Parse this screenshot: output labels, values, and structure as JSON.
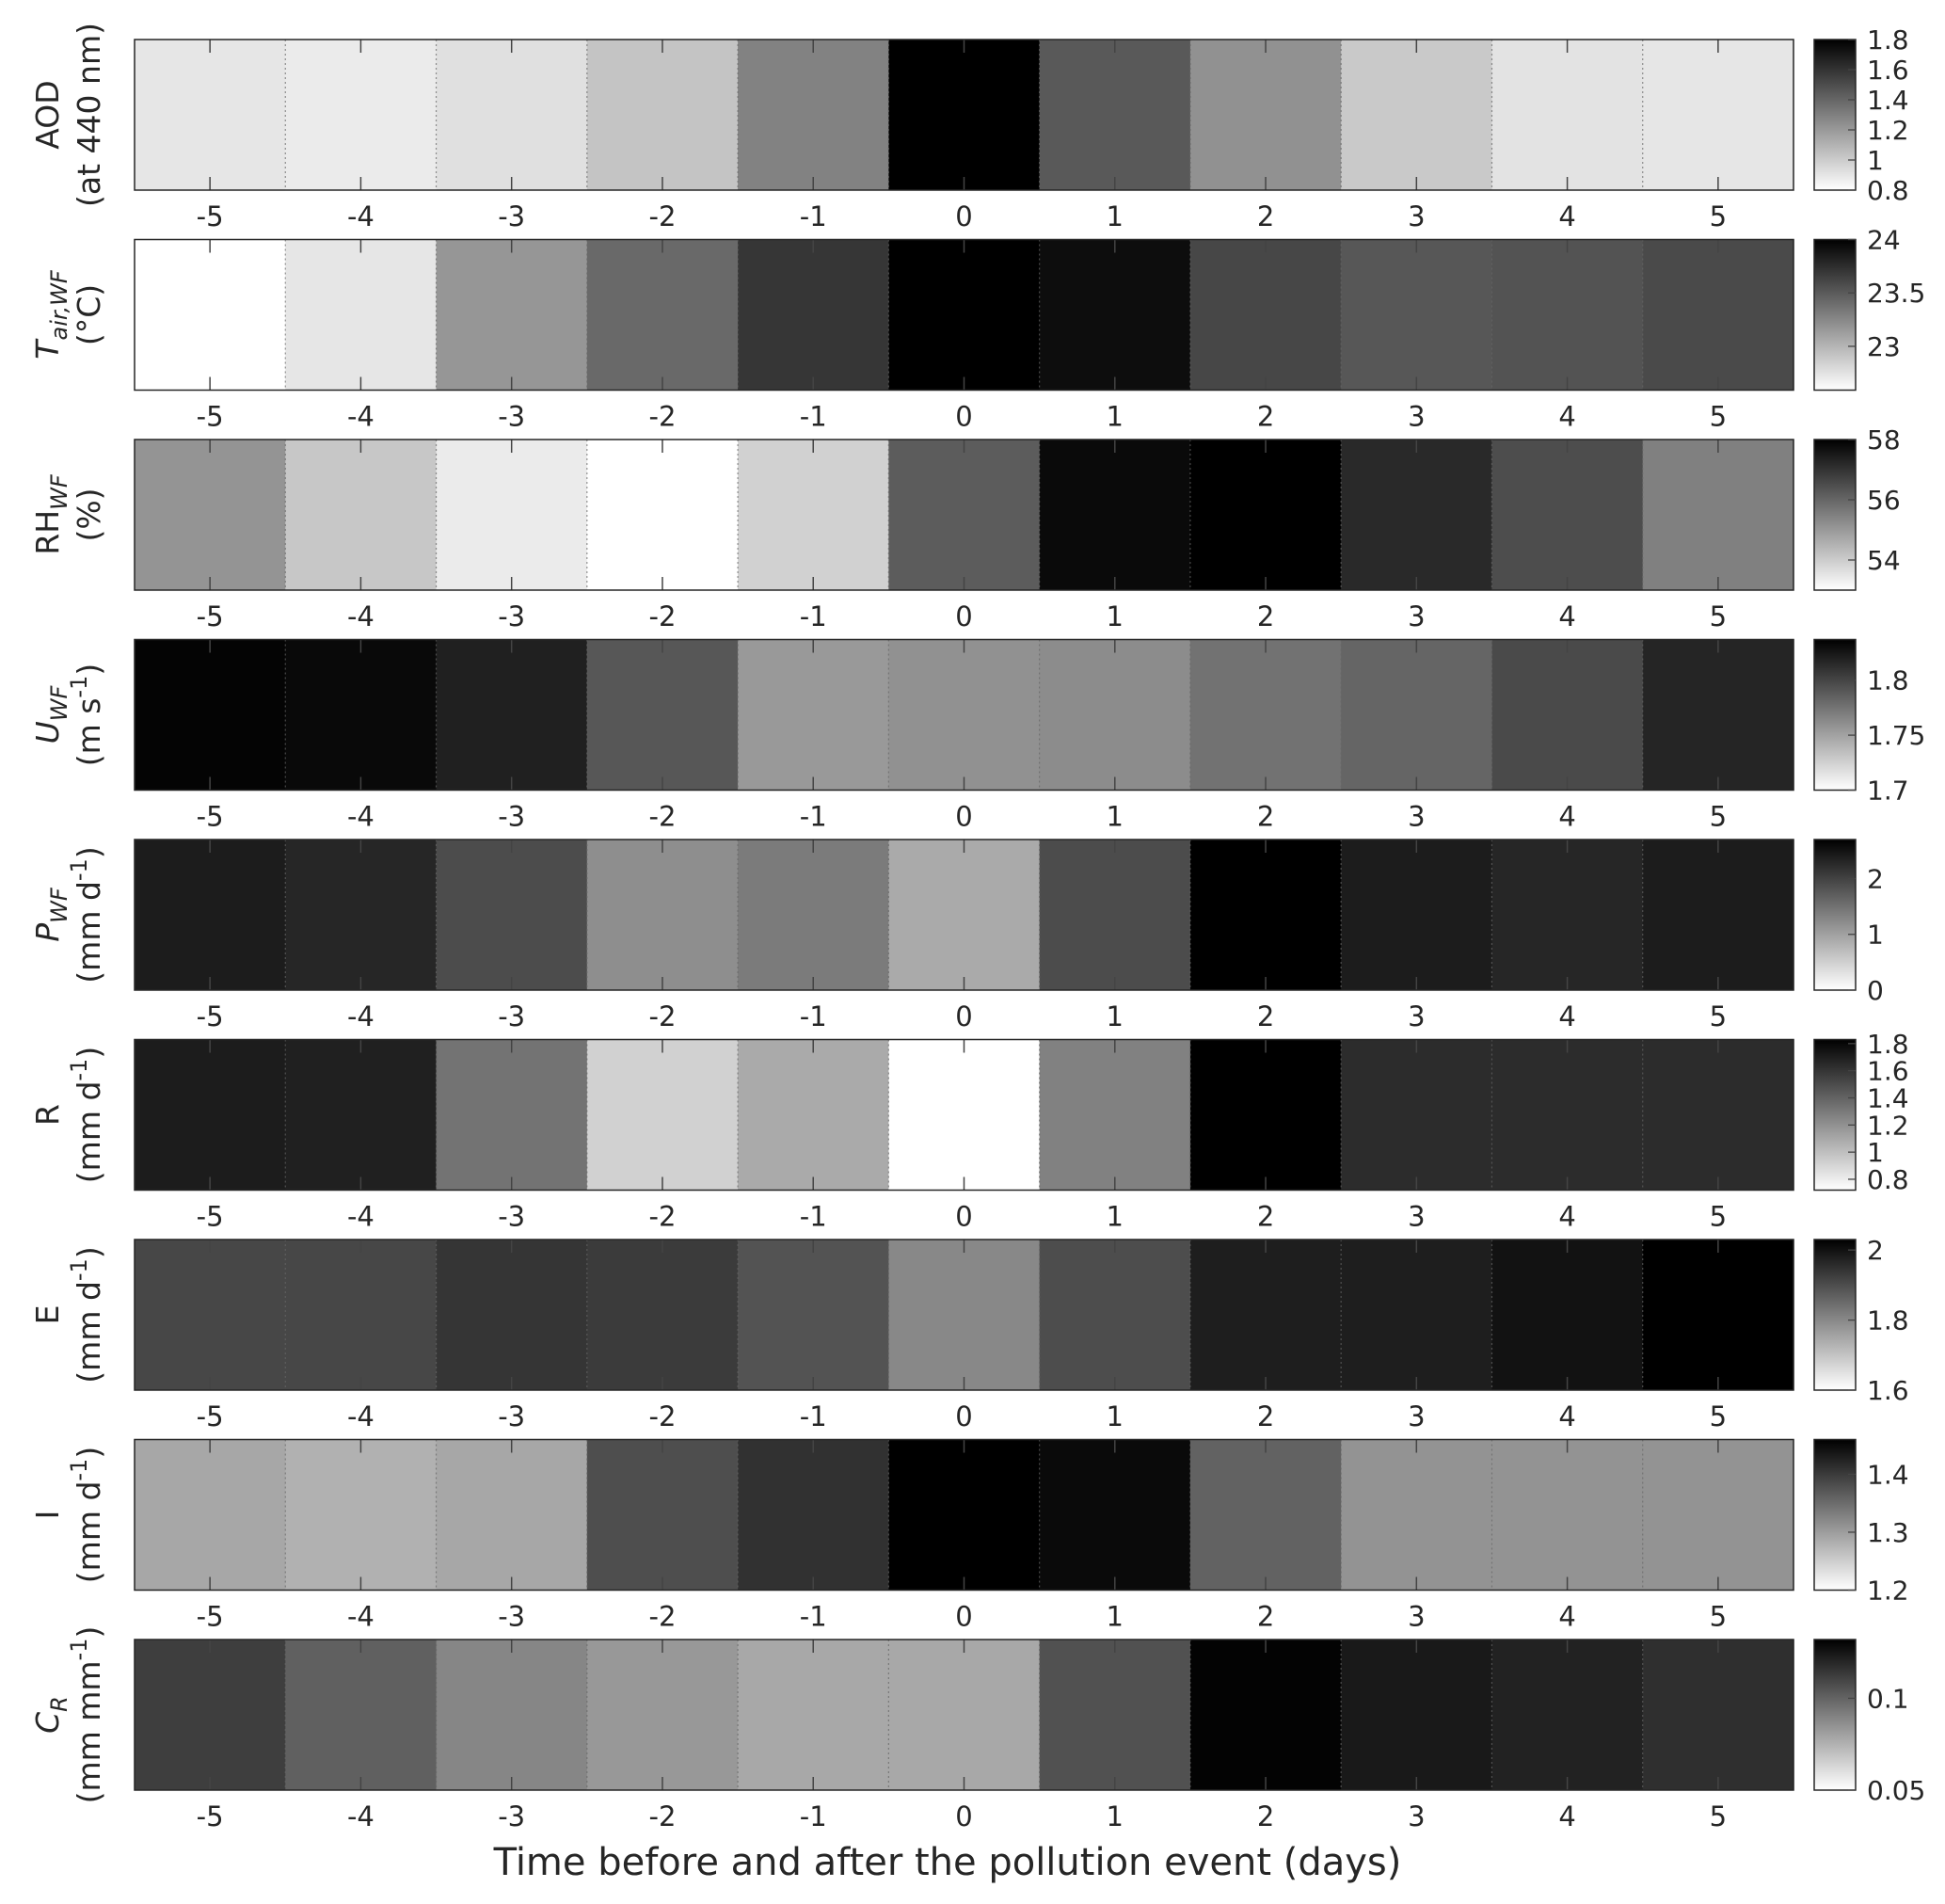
{
  "figure": {
    "xlabel": "Time before and after the pollution event (days)"
  },
  "chart_data": [
    {
      "type": "heatmap",
      "ylabel_lines": [
        "AOD",
        "(at 440 nm)"
      ],
      "x": [
        -5,
        -4,
        -3,
        -2,
        -1,
        0,
        1,
        2,
        3,
        4,
        5
      ],
      "values": [
        0.9,
        0.88,
        0.92,
        1.03,
        1.29,
        1.8,
        1.45,
        1.23,
        1.01,
        0.91,
        0.9
      ],
      "colorbar": {
        "min": 0.8,
        "max": 1.8,
        "ticks": [
          0.8,
          1,
          1.2,
          1.4,
          1.6,
          1.8
        ],
        "tick_labels": [
          "0.8",
          "1",
          "1.2",
          "1.4",
          "1.6",
          "1.8"
        ]
      },
      "colormap": "gray-reversed"
    },
    {
      "type": "heatmap",
      "ylabel_lines": [
        "T_air,WF",
        "(°C)"
      ],
      "x": [
        -5,
        -4,
        -3,
        -2,
        -1,
        0,
        1,
        2,
        3,
        4,
        5
      ],
      "values": [
        22.59,
        22.73,
        23.17,
        23.42,
        23.7,
        24.0,
        23.93,
        23.61,
        23.52,
        23.54,
        23.59
      ],
      "colorbar": {
        "min": 22.59,
        "max": 24.0,
        "ticks": [
          23,
          23.5,
          24
        ],
        "tick_labels": [
          "23",
          "23.5",
          "24"
        ]
      },
      "colormap": "gray-reversed"
    },
    {
      "type": "heatmap",
      "ylabel_lines": [
        "RH_WF",
        "(%)"
      ],
      "x": [
        -5,
        -4,
        -3,
        -2,
        -1,
        0,
        1,
        2,
        3,
        4,
        5
      ],
      "values": [
        55.1,
        54.1,
        53.4,
        53.0,
        53.9,
        56.2,
        57.8,
        58.0,
        57.2,
        56.5,
        55.5
      ],
      "colorbar": {
        "min": 53.0,
        "max": 58.0,
        "ticks": [
          54,
          56,
          58
        ],
        "tick_labels": [
          "54",
          "56",
          "58"
        ]
      },
      "colormap": "gray-reversed"
    },
    {
      "type": "heatmap",
      "ylabel_lines": [
        "U_WF",
        "(m s^-1)"
      ],
      "x": [
        -5,
        -4,
        -3,
        -2,
        -1,
        0,
        1,
        2,
        3,
        4,
        5
      ],
      "values": [
        1.835,
        1.832,
        1.82,
        1.79,
        1.755,
        1.759,
        1.762,
        1.776,
        1.783,
        1.797,
        1.817
      ],
      "colorbar": {
        "min": 1.7,
        "max": 1.837,
        "ticks": [
          1.7,
          1.75,
          1.8
        ],
        "tick_labels": [
          "1.7",
          "1.75",
          "1.8"
        ]
      },
      "colormap": "gray-reversed"
    },
    {
      "type": "heatmap",
      "ylabel_lines": [
        "P_WF",
        "(mm d^-1)"
      ],
      "x": [
        -5,
        -4,
        -3,
        -2,
        -1,
        0,
        1,
        2,
        3,
        4,
        5
      ],
      "values": [
        2.4,
        2.3,
        1.9,
        1.2,
        1.4,
        0.9,
        1.9,
        2.7,
        2.4,
        2.3,
        2.4
      ],
      "colorbar": {
        "min": 0,
        "max": 2.7,
        "ticks": [
          0,
          1,
          2
        ],
        "tick_labels": [
          "0",
          "1",
          "2"
        ]
      },
      "colormap": "gray-reversed"
    },
    {
      "type": "heatmap",
      "ylabel_lines": [
        "R",
        "(mm d^-1)"
      ],
      "x": [
        -5,
        -4,
        -3,
        -2,
        -1,
        0,
        1,
        2,
        3,
        4,
        5
      ],
      "values": [
        1.71,
        1.69,
        1.33,
        0.92,
        1.09,
        0.72,
        1.27,
        1.83,
        1.64,
        1.64,
        1.64
      ],
      "colorbar": {
        "min": 0.72,
        "max": 1.83,
        "ticks": [
          0.8,
          1,
          1.2,
          1.4,
          1.6,
          1.8
        ],
        "tick_labels": [
          "0.8",
          "1",
          "1.2",
          "1.4",
          "1.6",
          "1.8"
        ]
      },
      "colormap": "gray-reversed"
    },
    {
      "type": "heatmap",
      "ylabel_lines": [
        "E",
        "(mm d^-1)"
      ],
      "x": [
        -5,
        -4,
        -3,
        -2,
        -1,
        0,
        1,
        2,
        3,
        4,
        5
      ],
      "values": [
        1.91,
        1.91,
        1.94,
        1.93,
        1.89,
        1.8,
        1.9,
        1.98,
        1.98,
        2.0,
        2.03
      ],
      "colorbar": {
        "min": 1.6,
        "max": 2.03,
        "ticks": [
          1.6,
          1.8,
          2
        ],
        "tick_labels": [
          "1.6",
          "1.8",
          "2"
        ]
      },
      "colormap": "gray-reversed"
    },
    {
      "type": "heatmap",
      "ylabel_lines": [
        "I",
        "(mm d^-1)"
      ],
      "x": [
        -5,
        -4,
        -3,
        -2,
        -1,
        0,
        1,
        2,
        3,
        4,
        5
      ],
      "values": [
        1.29,
        1.28,
        1.29,
        1.38,
        1.41,
        1.46,
        1.45,
        1.36,
        1.31,
        1.31,
        1.31
      ],
      "colorbar": {
        "min": 1.2,
        "max": 1.46,
        "ticks": [
          1.2,
          1.3,
          1.4
        ],
        "tick_labels": [
          "1.2",
          "1.3",
          "1.4"
        ]
      },
      "colormap": "gray-reversed"
    },
    {
      "type": "heatmap",
      "ylabel_lines": [
        "C_R",
        "(mm mm^-1)"
      ],
      "x": [
        -5,
        -4,
        -3,
        -2,
        -1,
        0,
        1,
        2,
        3,
        4,
        5
      ],
      "values": [
        0.112,
        0.101,
        0.089,
        0.083,
        0.078,
        0.078,
        0.106,
        0.131,
        0.124,
        0.121,
        0.117
      ],
      "colorbar": {
        "min": 0.05,
        "max": 0.132,
        "ticks": [
          0.05,
          0.1
        ],
        "tick_labels": [
          "0.05",
          "0.1"
        ]
      },
      "colormap": "gray-reversed"
    }
  ]
}
